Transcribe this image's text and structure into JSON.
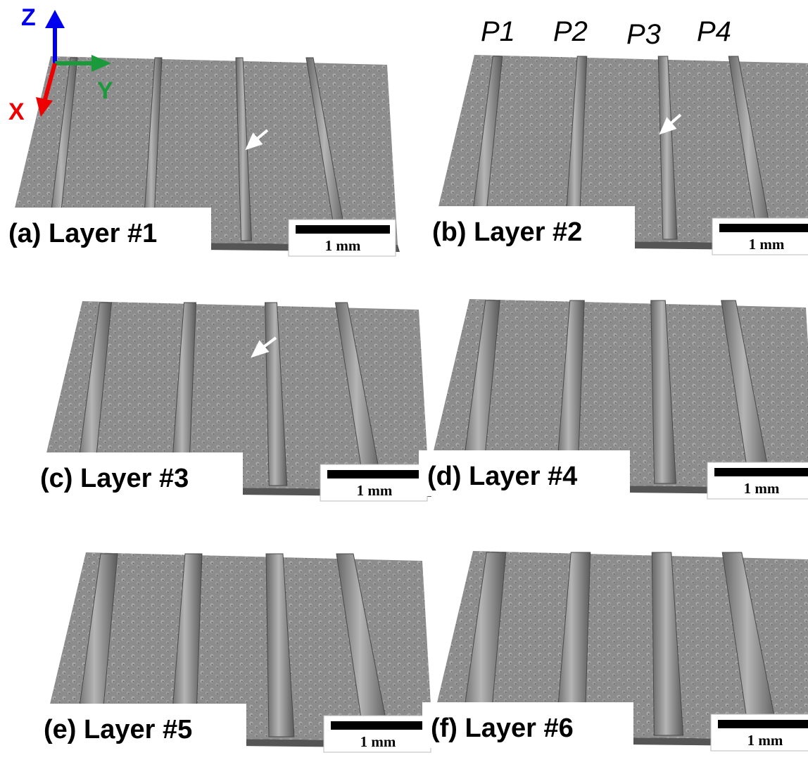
{
  "axes": {
    "z": "Z",
    "y": "Y",
    "x": "X"
  },
  "tracks": [
    "P1",
    "P2",
    "P3",
    "P4"
  ],
  "panels": [
    {
      "label": "(a) Layer #1",
      "scale": "1 mm"
    },
    {
      "label": "(b) Layer #2",
      "scale": "1 mm"
    },
    {
      "label": "(c) Layer #3",
      "scale": "1 mm"
    },
    {
      "label": "(d) Layer #4",
      "scale": "1 mm"
    },
    {
      "label": "(e) Layer #5",
      "scale": "1 mm"
    },
    {
      "label": "(f) Layer #6",
      "scale": "1 mm"
    }
  ]
}
